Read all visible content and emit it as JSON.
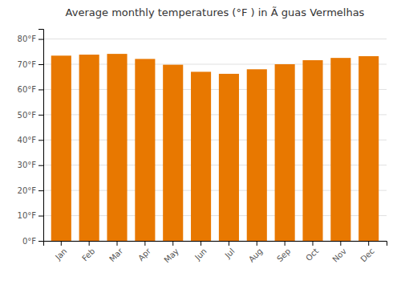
{
  "chart_data": {
    "type": "bar",
    "title": "Average monthly temperatures (°F ) in Ã guas Vermelhas",
    "categories": [
      "Jan",
      "Feb",
      "Mar",
      "Apr",
      "May",
      "Jun",
      "Jul",
      "Aug",
      "Sep",
      "Oct",
      "Nov",
      "Dec"
    ],
    "values": [
      73.4,
      73.8,
      74.1,
      72.1,
      69.8,
      67.0,
      66.2,
      68.0,
      70.0,
      71.6,
      72.5,
      73.2
    ],
    "color": "#E87800",
    "ylim": [
      0,
      84
    ],
    "yticks": [
      {
        "value": 0,
        "label": "0°F"
      },
      {
        "value": 10,
        "label": "10°F"
      },
      {
        "value": 20,
        "label": "20°F"
      },
      {
        "value": 30,
        "label": "30°F"
      },
      {
        "value": 40,
        "label": "40°F"
      },
      {
        "value": 50,
        "label": "50°F"
      },
      {
        "value": 60,
        "label": "60°F"
      },
      {
        "value": 70,
        "label": "70°F"
      },
      {
        "value": 80,
        "label": "80°F"
      }
    ],
    "grid": true
  }
}
